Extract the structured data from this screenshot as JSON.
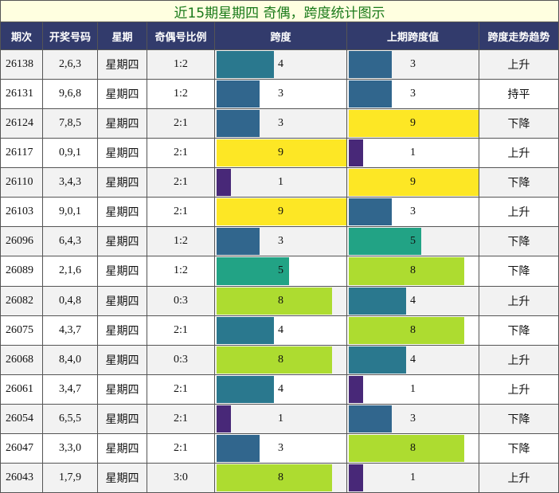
{
  "title": "近15期星期四 奇偶，跨度统计图示",
  "headers": [
    "期次",
    "开奖号码",
    "星期",
    "奇偶号比例",
    "跨度",
    "上期跨度值",
    "跨度走势趋势"
  ],
  "bar_scale": [
    0,
    9
  ],
  "bar_colors": {
    "1": "#482878",
    "3": "#31668d",
    "4": "#2a788e",
    "5": "#22a385",
    "8": "#addc30",
    "9": "#fde725"
  },
  "rows": [
    [
      "26138",
      "2,6,3",
      "星期四",
      "1:2",
      4,
      3,
      "上升"
    ],
    [
      "26131",
      "9,6,8",
      "星期四",
      "1:2",
      3,
      3,
      "持平"
    ],
    [
      "26124",
      "7,8,5",
      "星期四",
      "2:1",
      3,
      9,
      "下降"
    ],
    [
      "26117",
      "0,9,1",
      "星期四",
      "2:1",
      9,
      1,
      "上升"
    ],
    [
      "26110",
      "3,4,3",
      "星期四",
      "2:1",
      1,
      9,
      "下降"
    ],
    [
      "26103",
      "9,0,1",
      "星期四",
      "2:1",
      9,
      3,
      "上升"
    ],
    [
      "26096",
      "6,4,3",
      "星期四",
      "1:2",
      3,
      5,
      "下降"
    ],
    [
      "26089",
      "2,1,6",
      "星期四",
      "1:2",
      5,
      8,
      "下降"
    ],
    [
      "26082",
      "0,4,8",
      "星期四",
      "0:3",
      8,
      4,
      "上升"
    ],
    [
      "26075",
      "4,3,7",
      "星期四",
      "2:1",
      4,
      8,
      "下降"
    ],
    [
      "26068",
      "8,4,0",
      "星期四",
      "0:3",
      8,
      4,
      "上升"
    ],
    [
      "26061",
      "3,4,7",
      "星期四",
      "2:1",
      4,
      1,
      "上升"
    ],
    [
      "26054",
      "6,5,5",
      "星期四",
      "2:1",
      1,
      3,
      "下降"
    ],
    [
      "26047",
      "3,3,0",
      "星期四",
      "2:1",
      3,
      8,
      "下降"
    ],
    [
      "26043",
      "1,7,9",
      "星期四",
      "3:0",
      8,
      1,
      "上升"
    ]
  ]
}
